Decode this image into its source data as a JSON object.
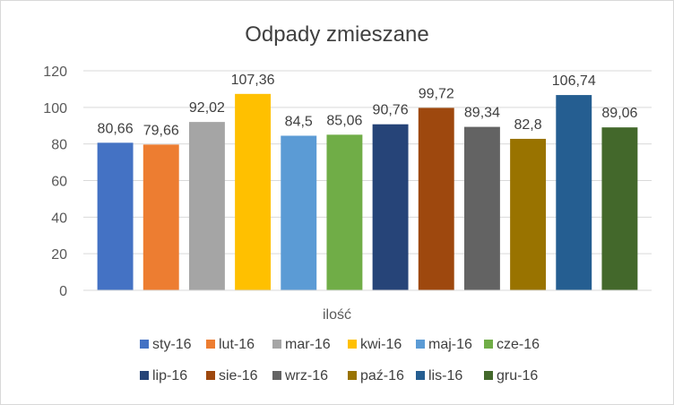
{
  "chart_data": {
    "type": "bar",
    "title": "Odpady zmieszane",
    "xlabel": "",
    "ylabel": "",
    "category_label": "ilość",
    "ylim": [
      0,
      120
    ],
    "yticks": [
      0,
      20,
      40,
      60,
      80,
      100,
      120
    ],
    "grid": true,
    "legend_position": "bottom",
    "series": [
      {
        "name": "sty-16",
        "value": 80.66,
        "label": "80,66",
        "color": "#4472C4"
      },
      {
        "name": "lut-16",
        "value": 79.66,
        "label": "79,66",
        "color": "#ED7D31"
      },
      {
        "name": "mar-16",
        "value": 92.02,
        "label": "92,02",
        "color": "#A5A5A5"
      },
      {
        "name": "kwi-16",
        "value": 107.36,
        "label": "107,36",
        "color": "#FFC000"
      },
      {
        "name": "maj-16",
        "value": 84.5,
        "label": "84,5",
        "color": "#5B9BD5"
      },
      {
        "name": "cze-16",
        "value": 85.06,
        "label": "85,06",
        "color": "#70AD47"
      },
      {
        "name": "lip-16",
        "value": 90.76,
        "label": "90,76",
        "color": "#264478"
      },
      {
        "name": "sie-16",
        "value": 99.72,
        "label": "99,72",
        "color": "#9E480E"
      },
      {
        "name": "wrz-16",
        "value": 89.34,
        "label": "89,34",
        "color": "#636363"
      },
      {
        "name": "paź-16",
        "value": 82.8,
        "label": "82,8",
        "color": "#997300"
      },
      {
        "name": "lis-16",
        "value": 106.74,
        "label": "106,74",
        "color": "#255E91"
      },
      {
        "name": "gru-16",
        "value": 89.06,
        "label": "89,06",
        "color": "#43682B"
      }
    ]
  }
}
